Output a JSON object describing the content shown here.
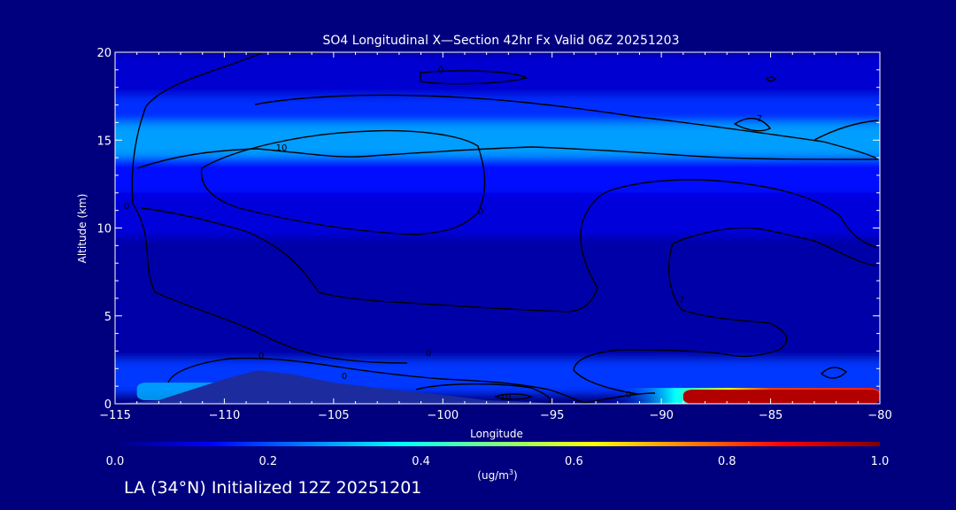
{
  "chart_data": {
    "type": "heatmap",
    "title": "SO4 Longitudinal X—Section 42hr  Fx Valid 06Z 20251203",
    "xlabel": "Longitude",
    "ylabel": "Altitude (km)",
    "xlim": [
      -115,
      -80
    ],
    "ylim": [
      0,
      20
    ],
    "x_ticks": [
      "−115",
      "−110",
      "−105",
      "−100",
      "−95",
      "−90",
      "−85",
      "−80"
    ],
    "y_ticks": [
      "0",
      "5",
      "10",
      "15",
      "20"
    ],
    "colorbar": {
      "min": 0.0,
      "max": 1.0,
      "ticks": [
        "0.0",
        "0.2",
        "0.4",
        "0.6",
        "0.8",
        "1.0"
      ],
      "unit_label": "(ug/m",
      "unit_sup": "3",
      "unit_close": ")"
    },
    "contour_labels": [
      "0",
      "0",
      "10",
      "0",
      "0",
      "0",
      "7",
      "0",
      "0",
      "10",
      "0",
      "7"
    ],
    "layers": [
      {
        "alt": [
          17.5,
          20
        ],
        "value": 0.08
      },
      {
        "alt": [
          16,
          17.5
        ],
        "value": 0.17
      },
      {
        "alt": [
          14,
          16
        ],
        "value": 0.28
      },
      {
        "alt": [
          12,
          14
        ],
        "value": 0.14
      },
      {
        "alt": [
          9.5,
          12
        ],
        "value": 0.09
      },
      {
        "alt": [
          2.5,
          9.5
        ],
        "value": 0.04
      },
      {
        "alt": [
          0.5,
          2.5
        ],
        "value": 0.18
      }
    ],
    "hotspots": [
      {
        "lon": [
          -92.5,
          -80
        ],
        "alt": [
          0,
          0.9
        ],
        "value": 0.65
      },
      {
        "lon": [
          -89,
          -80
        ],
        "alt": [
          0,
          0.8
        ],
        "value": 0.95
      },
      {
        "lon": [
          -114,
          -108
        ],
        "alt": [
          0.2,
          1.2
        ],
        "value": 0.3
      }
    ],
    "terrain": {
      "lon": [
        -115,
        -113,
        -110,
        -108.5,
        -107,
        -105,
        -103,
        -100,
        -98,
        -96,
        -95
      ],
      "alt": [
        0,
        0.2,
        1.4,
        1.9,
        1.7,
        1.2,
        0.9,
        0.5,
        0.2,
        0.1,
        0
      ]
    }
  },
  "footer": {
    "text": "LA (34°N) Initialized 12Z 20251201"
  }
}
